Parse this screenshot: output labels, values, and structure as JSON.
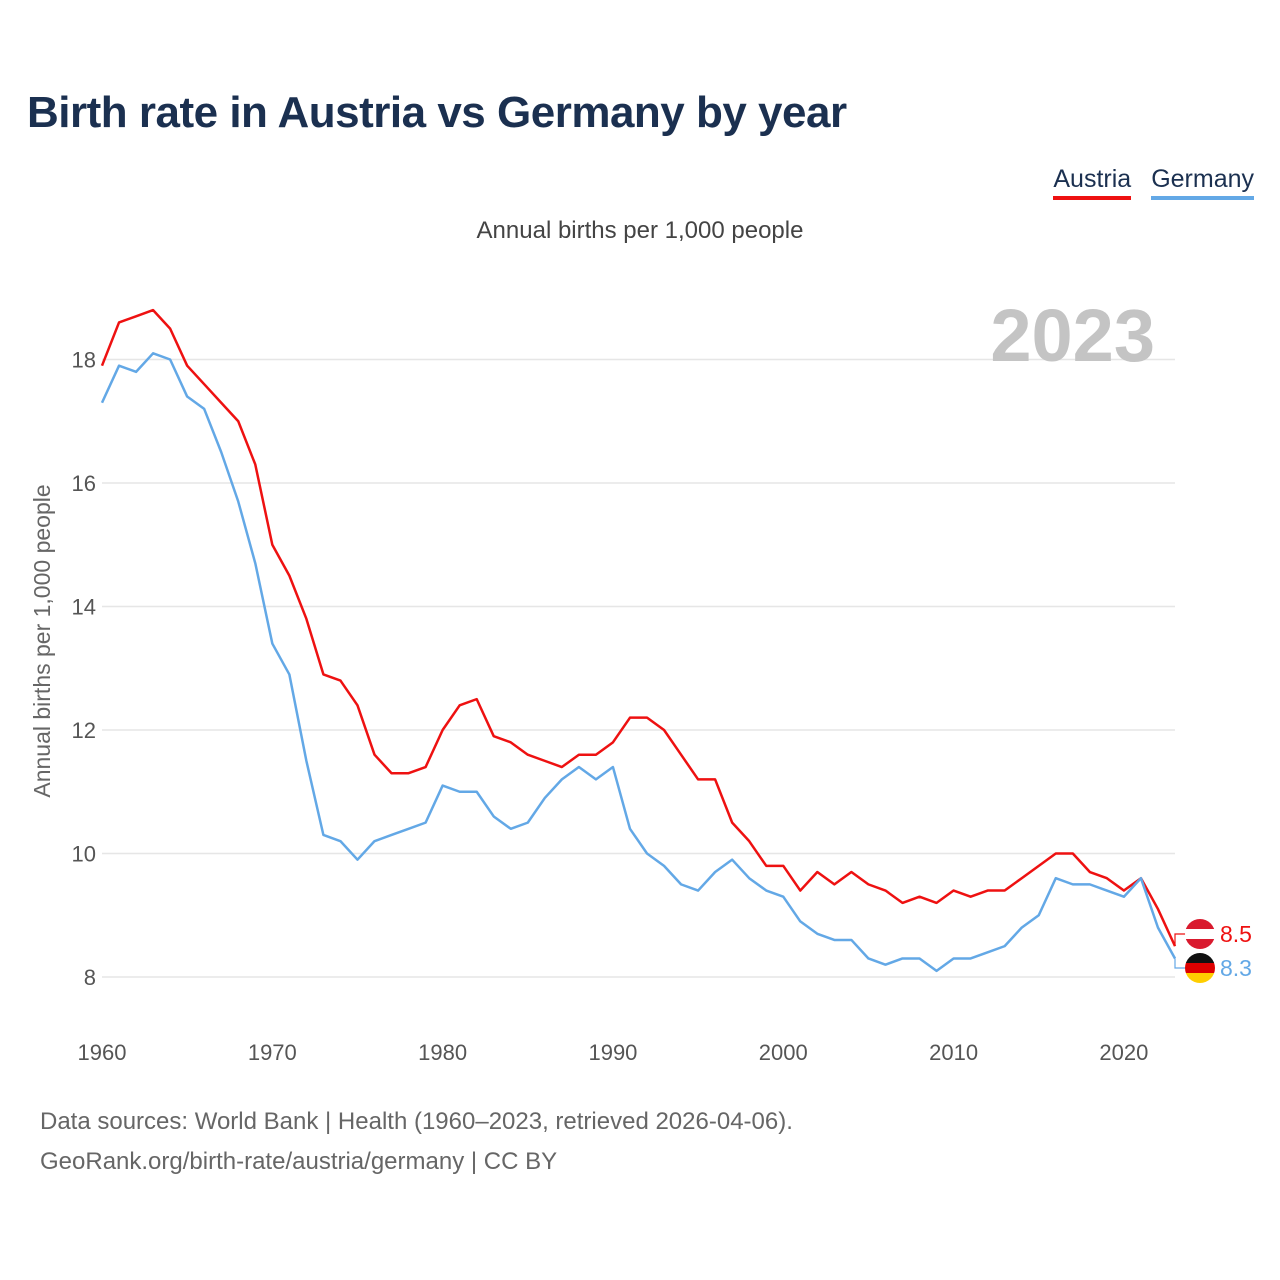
{
  "header": {
    "title": "Birth rate in Austria vs Germany by year",
    "subtitle": "Annual births per 1,000 people"
  },
  "legend": [
    {
      "label": "Austria",
      "color": "#ee1111"
    },
    {
      "label": "Germany",
      "color": "#63a8e6"
    }
  ],
  "footer": {
    "source_line": "Data sources: World Bank | Health (1960–2023, retrieved 2026-04-06).",
    "credit_line": "GeoRank.org/birth-rate/austria/germany | CC BY"
  },
  "chart_data": {
    "type": "line",
    "title": "Birth rate in Austria vs Germany by year",
    "subtitle": "Annual births per 1,000 people",
    "xlabel": "",
    "ylabel": "Annual births per 1,000 people",
    "year_watermark": "2023",
    "xlim": [
      1960,
      2023
    ],
    "ylim": [
      7.5,
      18.8
    ],
    "xticks": [
      1960,
      1970,
      1980,
      1990,
      2000,
      2010,
      2020
    ],
    "yticks": [
      8,
      10,
      12,
      14,
      16,
      18
    ],
    "grid": true,
    "legend_position": "top-right",
    "x": [
      1960,
      1961,
      1962,
      1963,
      1964,
      1965,
      1966,
      1967,
      1968,
      1969,
      1970,
      1971,
      1972,
      1973,
      1974,
      1975,
      1976,
      1977,
      1978,
      1979,
      1980,
      1981,
      1982,
      1983,
      1984,
      1985,
      1986,
      1987,
      1988,
      1989,
      1990,
      1991,
      1992,
      1993,
      1994,
      1995,
      1996,
      1997,
      1998,
      1999,
      2000,
      2001,
      2002,
      2003,
      2004,
      2005,
      2006,
      2007,
      2008,
      2009,
      2010,
      2011,
      2012,
      2013,
      2014,
      2015,
      2016,
      2017,
      2018,
      2019,
      2020,
      2021,
      2022,
      2023
    ],
    "series": [
      {
        "name": "Austria",
        "color": "#ee1111",
        "end_label": "8.5",
        "values": [
          17.9,
          18.6,
          18.7,
          18.8,
          18.5,
          17.9,
          17.6,
          17.3,
          17.0,
          16.3,
          15.0,
          14.5,
          13.8,
          12.9,
          12.8,
          12.4,
          11.6,
          11.3,
          11.3,
          11.4,
          12.0,
          12.4,
          12.5,
          11.9,
          11.8,
          11.6,
          11.5,
          11.4,
          11.6,
          11.6,
          11.8,
          12.2,
          12.2,
          12.0,
          11.6,
          11.2,
          11.2,
          10.5,
          10.2,
          9.8,
          9.8,
          9.4,
          9.7,
          9.5,
          9.7,
          9.5,
          9.4,
          9.2,
          9.3,
          9.2,
          9.4,
          9.3,
          9.4,
          9.4,
          9.6,
          9.8,
          10.0,
          10.0,
          9.7,
          9.6,
          9.4,
          9.6,
          9.1,
          8.5
        ]
      },
      {
        "name": "Germany",
        "color": "#63a8e6",
        "end_label": "8.3",
        "values": [
          17.3,
          17.9,
          17.8,
          18.1,
          18.0,
          17.4,
          17.2,
          16.5,
          15.7,
          14.7,
          13.4,
          12.9,
          11.5,
          10.3,
          10.2,
          9.9,
          10.2,
          10.3,
          10.4,
          10.5,
          11.1,
          11.0,
          11.0,
          10.6,
          10.4,
          10.5,
          10.9,
          11.2,
          11.4,
          11.2,
          11.4,
          10.4,
          10.0,
          9.8,
          9.5,
          9.4,
          9.7,
          9.9,
          9.6,
          9.4,
          9.3,
          8.9,
          8.7,
          8.6,
          8.6,
          8.3,
          8.2,
          8.3,
          8.3,
          8.1,
          8.3,
          8.3,
          8.4,
          8.5,
          8.8,
          9.0,
          9.6,
          9.5,
          9.5,
          9.4,
          9.3,
          9.6,
          8.8,
          8.3
        ]
      }
    ]
  }
}
